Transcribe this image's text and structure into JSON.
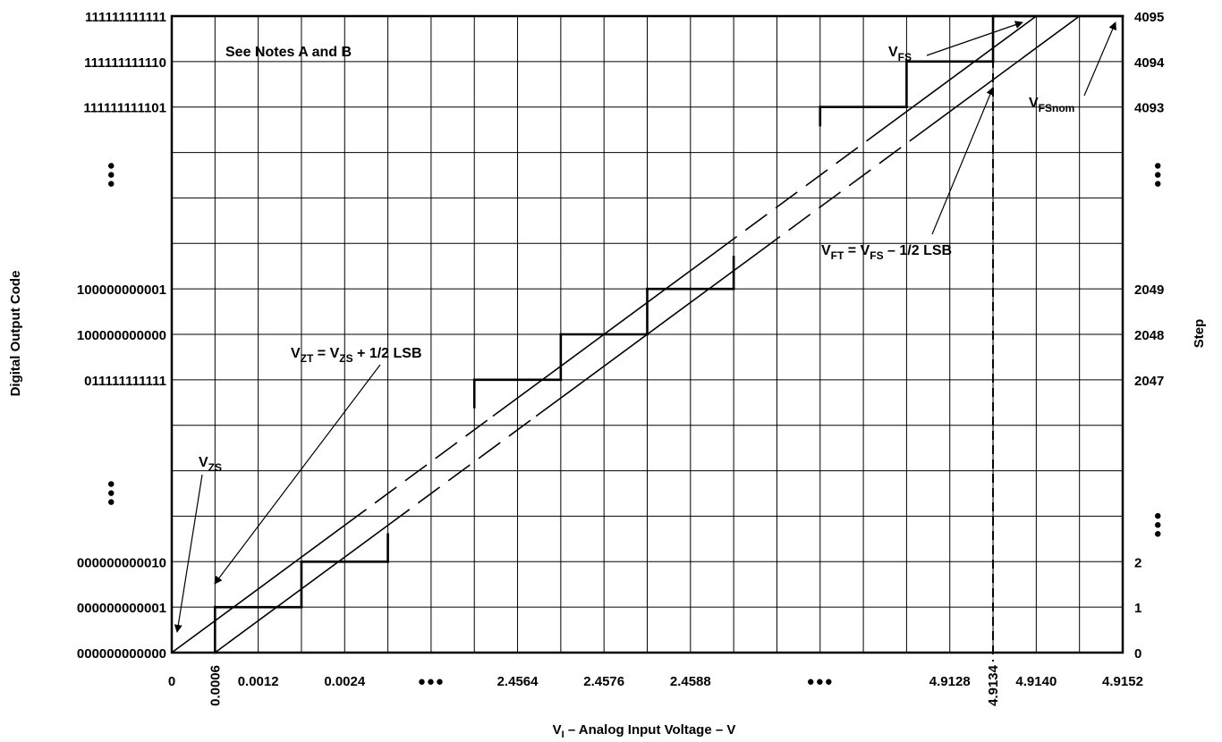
{
  "chart_data": {
    "type": "line",
    "title": "",
    "xlabel": "V_I – Analog Input Voltage – V",
    "xlabel_main": "V",
    "xlabel_sub": "I",
    "xlabel_rest": " – Analog Input Voltage – V",
    "ylabel_left": "Digital Output Code",
    "ylabel_right": "Step",
    "x_ticks": [
      {
        "slot": 0,
        "label": "0"
      },
      {
        "slot": 1,
        "label": "0.0006",
        "rotated": true
      },
      {
        "slot": 2,
        "label": "0.0012"
      },
      {
        "slot": 4,
        "label": "0.0024"
      },
      {
        "slot": 8,
        "label": "2.4564"
      },
      {
        "slot": 10,
        "label": "2.4576"
      },
      {
        "slot": 12,
        "label": "2.4588"
      },
      {
        "slot": 18,
        "label": "4.9128"
      },
      {
        "slot": 19,
        "label": "4.9134",
        "rotated": true
      },
      {
        "slot": 20,
        "label": "4.9140"
      },
      {
        "slot": 22,
        "label": "4.9152"
      }
    ],
    "y_ticks": [
      {
        "level": 0,
        "code": "000000000000",
        "step": "0"
      },
      {
        "level": 1,
        "code": "000000000001",
        "step": "1"
      },
      {
        "level": 2,
        "code": "000000000010",
        "step": "2"
      },
      {
        "level": 6,
        "code": "011111111111",
        "step": "2047"
      },
      {
        "level": 7,
        "code": "100000000000",
        "step": "2048"
      },
      {
        "level": 8,
        "code": "100000000001",
        "step": "2049"
      },
      {
        "level": 12,
        "code": "111111111101",
        "step": "4093"
      },
      {
        "level": 13,
        "code": "111111111110",
        "step": "4094"
      },
      {
        "level": 14,
        "code": "111111111111",
        "step": "4095"
      }
    ],
    "ellipsis_marks": "●●●",
    "staircase": [
      [
        1,
        0
      ],
      [
        1,
        1
      ],
      [
        3,
        1
      ],
      [
        3,
        2
      ],
      [
        5,
        2
      ],
      [
        5,
        2.6
      ],
      [
        7,
        5.4
      ],
      [
        7,
        6
      ],
      [
        9,
        6
      ],
      [
        9,
        7
      ],
      [
        11,
        7
      ],
      [
        11,
        8
      ],
      [
        13,
        8
      ],
      [
        13,
        8.7
      ],
      [
        15,
        11.6
      ],
      [
        15,
        12
      ],
      [
        17,
        12
      ],
      [
        17,
        13
      ],
      [
        19,
        13
      ],
      [
        19,
        14
      ],
      [
        22,
        14
      ]
    ],
    "ideal_line_upper": {
      "from": [
        0,
        0
      ],
      "to": [
        20,
        14
      ]
    },
    "ideal_line_lower": {
      "from": [
        1,
        0
      ],
      "to": [
        21,
        14
      ]
    },
    "full_scale_marker_slot": 19,
    "annotations": {
      "notes": "See Notes A and B",
      "vzs_main": "V",
      "vzs_sub": "ZS",
      "vzt_a": "V",
      "vzt_b": "ZT",
      "vzt_c": " = V",
      "vzt_d": "ZS",
      "vzt_e": " + 1/2 LSB",
      "vfs_main": "V",
      "vfs_sub": "FS",
      "vfsnom_main": "V",
      "vfsnom_sub": "FSnom",
      "vft_a": "V",
      "vft_b": "FT",
      "vft_c": " = V",
      "vft_d": "FS",
      "vft_e": " – 1/2 LSB"
    }
  }
}
